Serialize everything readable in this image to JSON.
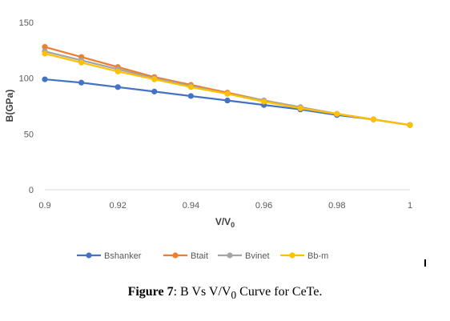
{
  "chart_data": {
    "type": "line",
    "xlabel": "V/V",
    "xlabel_sub": "0",
    "ylabel": "B(GPa)",
    "xlim": [
      0.9,
      1.0
    ],
    "ylim": [
      0,
      150
    ],
    "x_ticks": [
      "0.9",
      "0.92",
      "0.94",
      "0.96",
      "0.98",
      "1"
    ],
    "y_ticks": [
      "0",
      "50",
      "100",
      "150"
    ],
    "grid": false,
    "legend_position": "bottom",
    "x": [
      0.9,
      0.91,
      0.92,
      0.93,
      0.94,
      0.95,
      0.96,
      0.97,
      0.98,
      0.99,
      1.0
    ],
    "series": [
      {
        "name": "Bshanker",
        "color": "#4472C4",
        "values": [
          99,
          96,
          92,
          88,
          84,
          80,
          76,
          72,
          67,
          63,
          58
        ]
      },
      {
        "name": "Btait",
        "color": "#ED7D31",
        "values": [
          128,
          119,
          110,
          101,
          94,
          87,
          80,
          74,
          68,
          63,
          58
        ]
      },
      {
        "name": "Bvinet",
        "color": "#A5A5A5",
        "values": [
          124,
          116,
          108,
          100,
          93,
          86,
          80,
          74,
          68,
          63,
          58
        ]
      },
      {
        "name": "Bb-m",
        "color": "#FFC000",
        "values": [
          122,
          114,
          106,
          99,
          92,
          86,
          79,
          73,
          68,
          63,
          58
        ]
      }
    ]
  },
  "caption": {
    "label": "Figure 7",
    "text_before": ": B Vs V/V",
    "sub": "0",
    "text_after": " Curve for CeTe."
  }
}
